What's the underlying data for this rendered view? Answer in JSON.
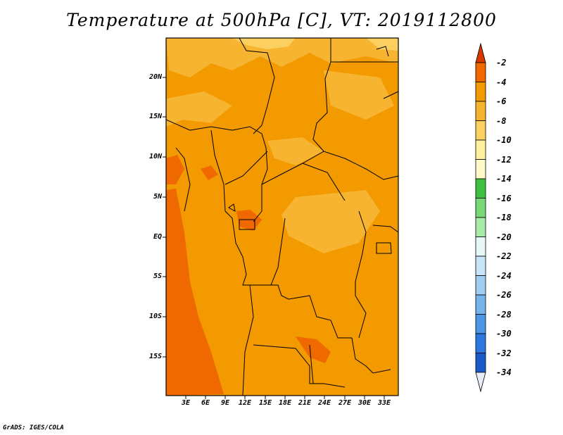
{
  "title": "Temperature at 500hPa [C], VT: 2019112800",
  "footer": "GrADS: IGES/COLA",
  "map": {
    "lat_labels": [
      "20N",
      "15N",
      "10N",
      "5N",
      "EQ",
      "5S",
      "10S",
      "15S"
    ],
    "lon_labels": [
      "3E",
      "6E",
      "9E",
      "12E",
      "15E",
      "18E",
      "21E",
      "24E",
      "27E",
      "30E",
      "33E"
    ]
  },
  "colorbar": {
    "labels": [
      "-2",
      "-4",
      "-6",
      "-8",
      "-10",
      "-12",
      "-14",
      "-16",
      "-18",
      "-20",
      "-22",
      "-24",
      "-26",
      "-28",
      "-30",
      "-32",
      "-34"
    ],
    "colors": [
      "#d73800",
      "#f06800",
      "#f29a00",
      "#f7b430",
      "#fbd060",
      "#fff0a0",
      "#fffac8",
      "#40c040",
      "#78d878",
      "#a8eaa8",
      "#e6f8f6",
      "#c8e4f8",
      "#a0cdf2",
      "#78b4ec",
      "#4b96e6",
      "#2c78e0",
      "#1a5ac8",
      "#0c2c8c"
    ]
  },
  "colors": {
    "field_base": "#f29a00",
    "field_warm": "#f06800",
    "field_cool": "#f7b430",
    "field_coolest": "#fbd060",
    "border": "#000000"
  }
}
